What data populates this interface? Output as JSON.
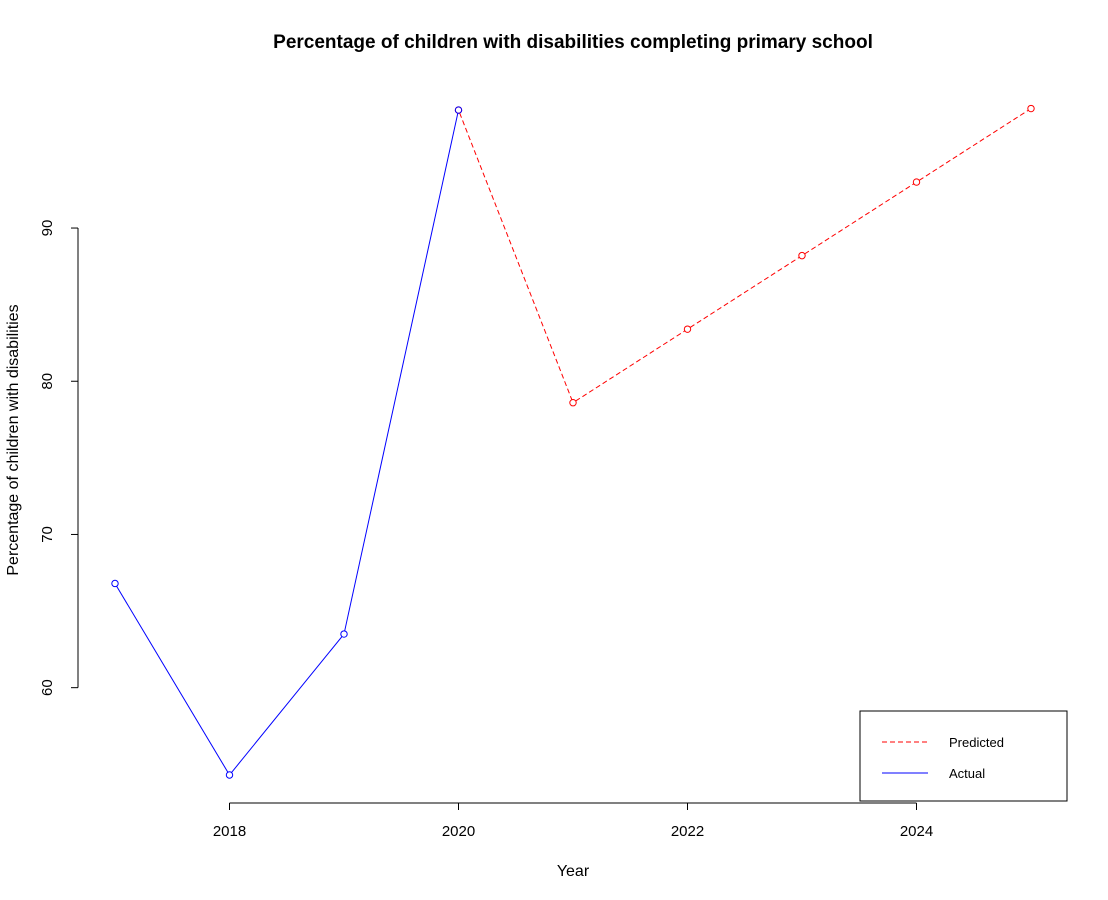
{
  "chart_data": {
    "type": "line",
    "title": "Percentage of children with disabilities completing primary school",
    "xlabel": "Year",
    "ylabel": "Percentage of children with disabilities",
    "xlim": [
      2017,
      2025
    ],
    "ylim": [
      54.3,
      97.9
    ],
    "x_ticks": [
      "2018",
      "2020",
      "2022",
      "2024"
    ],
    "y_ticks": [
      "60",
      "70",
      "80",
      "90"
    ],
    "grid": false,
    "legend_position": "bottom-right",
    "series": [
      {
        "name": "Predicted",
        "color": "#ff0000",
        "line_style": "dashed",
        "marker": "open-circle",
        "x": [
          2020,
          2021,
          2022,
          2023,
          2024,
          2025
        ],
        "y": [
          97.7,
          78.6,
          83.4,
          88.2,
          93.0,
          97.8
        ]
      },
      {
        "name": "Actual",
        "color": "#0000ff",
        "line_style": "solid",
        "marker": "open-circle",
        "x": [
          2017,
          2018,
          2019,
          2020
        ],
        "y": [
          66.8,
          54.3,
          63.5,
          97.7
        ]
      }
    ]
  }
}
